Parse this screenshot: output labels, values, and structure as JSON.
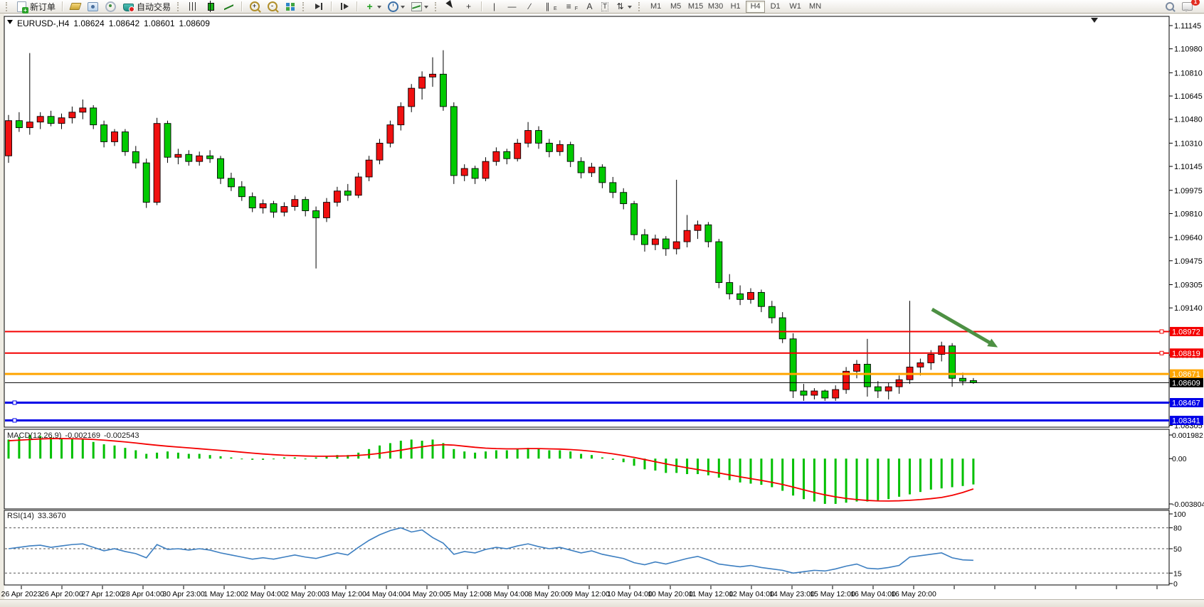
{
  "toolbar": {
    "new_order_label": "新订单",
    "auto_trading_label": "自动交易",
    "timeframes": [
      "M1",
      "M5",
      "M15",
      "M30",
      "H1",
      "H4",
      "D1",
      "W1",
      "MN"
    ],
    "active_timeframe": "H4",
    "tool_labels": {
      "text": "A",
      "label": "T",
      "channel": "E",
      "fibonacci": "F"
    },
    "notification_badge": "1"
  },
  "chart": {
    "title": "EURUSD-,H4",
    "open": "1.08624",
    "high": "1.08642",
    "low": "1.08601",
    "close": "1.08609"
  },
  "price_axis": {
    "ticks": [
      "1.11145",
      "1.10980",
      "1.10810",
      "1.10645",
      "1.10480",
      "1.10310",
      "1.10145",
      "1.09975",
      "1.09810",
      "1.09640",
      "1.09475",
      "1.09305",
      "1.09140",
      "1.08975",
      "1.08805",
      "1.08640",
      "1.08470",
      "1.08305"
    ]
  },
  "time_axis": {
    "labels": [
      "26 Apr 2023",
      "26 Apr 20:00",
      "27 Apr 12:00",
      "28 Apr 04:00",
      "30 Apr 23:00",
      "1 May 12:00",
      "2 May 04:00",
      "2 May 20:00",
      "3 May 12:00",
      "4 May 04:00",
      "4 May 20:00",
      "5 May 12:00",
      "8 May 04:00",
      "8 May 20:00",
      "9 May 12:00",
      "10 May 04:00",
      "10 May 20:00",
      "11 May 12:00",
      "12 May 04:00",
      "14 May 23:00",
      "15 May 12:00",
      "16 May 04:00",
      "16 May 20:00"
    ]
  },
  "hlines": [
    {
      "price": "1.08972",
      "color": "#f40000",
      "thickness": 2,
      "handle": "right"
    },
    {
      "price": "1.08819",
      "color": "#f40000",
      "thickness": 2,
      "handle": "right"
    },
    {
      "price": "1.08671",
      "color": "#ffa500",
      "thickness": 3,
      "handle": "none"
    },
    {
      "price": "1.08609",
      "color": "#000000",
      "thickness": 1,
      "handle": "none"
    },
    {
      "price": "1.08467",
      "color": "#0000e8",
      "thickness": 3,
      "handle": "left"
    },
    {
      "price": "1.08341",
      "color": "#0000e8",
      "thickness": 3,
      "handle": "left"
    }
  ],
  "indicators": {
    "macd": {
      "name": "MACD(12,26,9)",
      "main_value": "-0.002169",
      "signal_value": "-0.002543",
      "axis_ticks": [
        "0.001982",
        "0.00",
        "-0.003804"
      ]
    },
    "rsi": {
      "name": "RSI(14)",
      "value": "33.3670",
      "axis_ticks": [
        "100",
        "80",
        "50",
        "15",
        "0"
      ],
      "level_lines": [
        80,
        50,
        15
      ]
    }
  },
  "chart_data": {
    "type": "candlestick",
    "symbol": "EURUSD",
    "period": "H4",
    "bull_color": "#f01010",
    "bear_color": "#00ca00",
    "visible_price_range": [
      1.0828,
      1.1121
    ],
    "candles": [
      [
        1.1022,
        1.1051,
        1.1017,
        1.1047
      ],
      [
        1.1047,
        1.1053,
        1.1039,
        1.1042
      ],
      [
        1.1042,
        1.1095,
        1.1037,
        1.1046
      ],
      [
        1.1046,
        1.1053,
        1.1041,
        1.105
      ],
      [
        1.105,
        1.1054,
        1.1043,
        1.1045
      ],
      [
        1.1045,
        1.1052,
        1.1041,
        1.1049
      ],
      [
        1.1049,
        1.1057,
        1.1045,
        1.1053
      ],
      [
        1.1053,
        1.1062,
        1.1048,
        1.1056
      ],
      [
        1.1056,
        1.1058,
        1.1041,
        1.1044
      ],
      [
        1.1044,
        1.1047,
        1.1028,
        1.1032
      ],
      [
        1.1032,
        1.1041,
        1.1029,
        1.1039
      ],
      [
        1.1039,
        1.1041,
        1.1022,
        1.1025
      ],
      [
        1.1025,
        1.1029,
        1.1013,
        1.1017
      ],
      [
        1.1017,
        1.102,
        1.0985,
        1.0989
      ],
      [
        1.0989,
        1.1049,
        1.0987,
        1.1045
      ],
      [
        1.1045,
        1.1047,
        1.1017,
        1.1021
      ],
      [
        1.1021,
        1.1027,
        1.1016,
        1.1023
      ],
      [
        1.1023,
        1.1026,
        1.1015,
        1.1018
      ],
      [
        1.1018,
        1.1025,
        1.1015,
        1.1022
      ],
      [
        1.1022,
        1.1026,
        1.1017,
        1.102
      ],
      [
        1.102,
        1.1022,
        1.1002,
        1.1006
      ],
      [
        1.1006,
        1.101,
        1.0997,
        1.1
      ],
      [
        1.1,
        1.1004,
        1.099,
        1.0993
      ],
      [
        1.0993,
        1.0996,
        1.0982,
        1.0985
      ],
      [
        1.0985,
        1.0991,
        1.0981,
        1.0988
      ],
      [
        1.0988,
        1.099,
        1.0978,
        1.0982
      ],
      [
        1.0982,
        1.0989,
        1.0979,
        1.0986
      ],
      [
        1.0986,
        1.0994,
        1.0983,
        1.0991
      ],
      [
        1.0991,
        1.0993,
        1.0979,
        1.0983
      ],
      [
        1.0983,
        1.0986,
        1.0942,
        1.0978
      ],
      [
        1.0978,
        1.0992,
        1.0975,
        1.0989
      ],
      [
        1.0989,
        1.1,
        1.0986,
        1.0997
      ],
      [
        1.0997,
        1.1002,
        1.099,
        1.0994
      ],
      [
        1.0994,
        1.101,
        1.0992,
        1.1007
      ],
      [
        1.1007,
        1.1022,
        1.1004,
        1.1019
      ],
      [
        1.1019,
        1.1034,
        1.1016,
        1.1031
      ],
      [
        1.1031,
        1.1047,
        1.1028,
        1.1044
      ],
      [
        1.1044,
        1.106,
        1.104,
        1.1057
      ],
      [
        1.1057,
        1.1073,
        1.1053,
        1.107
      ],
      [
        1.107,
        1.1082,
        1.1062,
        1.1078
      ],
      [
        1.1078,
        1.1092,
        1.1071,
        1.108
      ],
      [
        1.108,
        1.1097,
        1.1054,
        1.1057
      ],
      [
        1.1057,
        1.106,
        1.1002,
        1.1008
      ],
      [
        1.1008,
        1.1016,
        1.1004,
        1.1013
      ],
      [
        1.1013,
        1.1015,
        1.1002,
        1.1006
      ],
      [
        1.1006,
        1.1021,
        1.1004,
        1.1018
      ],
      [
        1.1018,
        1.1028,
        1.1015,
        1.1025
      ],
      [
        1.1025,
        1.1027,
        1.1016,
        1.102
      ],
      [
        1.102,
        1.1034,
        1.1018,
        1.1031
      ],
      [
        1.1031,
        1.1046,
        1.1028,
        1.104
      ],
      [
        1.104,
        1.1043,
        1.1027,
        1.1031
      ],
      [
        1.1031,
        1.1034,
        1.1021,
        1.1025
      ],
      [
        1.1025,
        1.1033,
        1.1022,
        1.103
      ],
      [
        1.103,
        1.1032,
        1.1014,
        1.1018
      ],
      [
        1.1018,
        1.1021,
        1.1006,
        1.101
      ],
      [
        1.101,
        1.1017,
        1.1007,
        1.1014
      ],
      [
        1.1014,
        1.1016,
        1.0999,
        1.1003
      ],
      [
        1.1003,
        1.1007,
        1.0992,
        1.0996
      ],
      [
        1.0996,
        1.0999,
        1.0984,
        1.0988
      ],
      [
        1.0988,
        1.099,
        1.0962,
        1.0966
      ],
      [
        1.0966,
        1.097,
        1.0954,
        1.0959
      ],
      [
        1.0959,
        1.0966,
        1.0955,
        1.0963
      ],
      [
        1.0963,
        1.0965,
        1.0951,
        1.0956
      ],
      [
        1.0956,
        1.1005,
        1.0952,
        1.0961
      ],
      [
        1.0961,
        1.098,
        1.0957,
        1.0969
      ],
      [
        1.0969,
        1.0976,
        1.0963,
        1.0973
      ],
      [
        1.0973,
        1.0975,
        1.0957,
        1.0961
      ],
      [
        1.0961,
        1.0963,
        1.0928,
        1.0932
      ],
      [
        1.0932,
        1.0938,
        1.092,
        1.0924
      ],
      [
        1.0924,
        1.093,
        1.0916,
        1.092
      ],
      [
        1.092,
        1.0928,
        1.0917,
        1.0925
      ],
      [
        1.0925,
        1.0927,
        1.0911,
        1.0915
      ],
      [
        1.0915,
        1.0919,
        1.0903,
        1.0907
      ],
      [
        1.0907,
        1.0911,
        1.0889,
        1.0892
      ],
      [
        1.0892,
        1.0896,
        1.085,
        1.0855
      ],
      [
        1.0855,
        1.086,
        1.0848,
        1.0852
      ],
      [
        1.0852,
        1.0857,
        1.0849,
        1.0855
      ],
      [
        1.0855,
        1.0856,
        1.0848,
        1.085
      ],
      [
        1.085,
        1.0859,
        1.0848,
        1.0856
      ],
      [
        1.0856,
        1.0872,
        1.0853,
        1.0869
      ],
      [
        1.0869,
        1.0877,
        1.0864,
        1.0874
      ],
      [
        1.0874,
        1.0892,
        1.0851,
        1.0858
      ],
      [
        1.0858,
        1.0862,
        1.085,
        1.0855
      ],
      [
        1.0855,
        1.0861,
        1.0849,
        1.0858
      ],
      [
        1.0858,
        1.0866,
        1.0853,
        1.0863
      ],
      [
        1.0863,
        1.0919,
        1.086,
        1.0872
      ],
      [
        1.0872,
        1.0878,
        1.0866,
        1.0875
      ],
      [
        1.0875,
        1.0884,
        1.087,
        1.0881
      ],
      [
        1.0881,
        1.089,
        1.0876,
        1.0887
      ],
      [
        1.0887,
        1.0889,
        1.0858,
        1.0864
      ],
      [
        1.0864,
        1.0868,
        1.0859,
        1.0862
      ],
      [
        1.08624,
        1.08642,
        1.08601,
        1.08609
      ]
    ],
    "macd": {
      "histogram_color": "#00c000",
      "signal_color": "#f40000",
      "range": [
        -0.003804,
        0.001982
      ],
      "histogram": [
        0.0016,
        0.0018,
        0.00198,
        0.0019,
        0.0018,
        0.0017,
        0.0017,
        0.0016,
        0.0014,
        0.0012,
        0.0011,
        0.0009,
        0.0007,
        0.0004,
        0.0005,
        0.0006,
        0.0005,
        0.0004,
        0.0004,
        0.0003,
        0.0002,
        0.0001,
        0,
        -0.0001,
        -0.0001,
        0,
        0.0001,
        0.0001,
        0,
        0.0001,
        0.0002,
        0.0003,
        0.0003,
        0.0005,
        0.0008,
        0.0011,
        0.0013,
        0.0015,
        0.0016,
        0.0015,
        0.0016,
        0.0013,
        0.0008,
        0.0006,
        0.0005,
        0.0006,
        0.0007,
        0.0007,
        0.0008,
        0.0009,
        0.0008,
        0.0007,
        0.0007,
        0.0006,
        0.0004,
        0.0003,
        0.0001,
        -0.0001,
        -0.0003,
        -0.0006,
        -0.0009,
        -0.001,
        -0.0012,
        -0.0012,
        -0.0013,
        -0.0013,
        -0.0014,
        -0.0016,
        -0.0018,
        -0.002,
        -0.0021,
        -0.0022,
        -0.0024,
        -0.0027,
        -0.0031,
        -0.0034,
        -0.0036,
        -0.0038,
        -0.0038,
        -0.0037,
        -0.0036,
        -0.0036,
        -0.0035,
        -0.0034,
        -0.0032,
        -0.003,
        -0.0028,
        -0.0026,
        -0.0025,
        -0.0024,
        -0.0023,
        -0.002169
      ],
      "signal_line": [
        0.0015,
        0.00155,
        0.0016,
        0.00165,
        0.00168,
        0.00168,
        0.00167,
        0.00165,
        0.00161,
        0.00155,
        0.00148,
        0.0014,
        0.00131,
        0.00121,
        0.00112,
        0.00104,
        0.00097,
        0.0009,
        0.00083,
        0.00076,
        0.00069,
        0.00062,
        0.00054,
        0.00046,
        0.00039,
        0.00033,
        0.00028,
        0.00025,
        0.00022,
        0.0002,
        0.0002,
        0.00021,
        0.00023,
        0.00027,
        0.00034,
        0.00044,
        0.00057,
        0.00071,
        0.00086,
        0.00099,
        0.00111,
        0.00117,
        0.00113,
        0.00104,
        0.00095,
        0.00088,
        0.00084,
        0.00082,
        0.00082,
        0.00084,
        0.00084,
        0.00082,
        0.0008,
        0.00076,
        0.0007,
        0.00062,
        0.00052,
        0.0004,
        0.00026,
        0.0001,
        -8e-05,
        -0.00026,
        -0.00044,
        -0.00061,
        -0.00077,
        -0.00092,
        -0.00106,
        -0.00121,
        -0.00137,
        -0.00153,
        -0.00168,
        -0.00183,
        -0.00199,
        -0.00217,
        -0.00239,
        -0.00262,
        -0.00284,
        -0.00304,
        -0.00321,
        -0.00334,
        -0.00344,
        -0.00351,
        -0.00355,
        -0.00356,
        -0.00354,
        -0.0035,
        -0.00344,
        -0.00336,
        -0.00326,
        -0.00308,
        -0.00284,
        -0.002543
      ]
    },
    "rsi": {
      "color": "#3d7fc1",
      "range": [
        0,
        100
      ],
      "current": 33.367,
      "values": [
        50,
        52,
        54,
        55,
        52,
        54,
        56,
        57,
        52,
        47,
        50,
        46,
        43,
        37,
        56,
        49,
        50,
        48,
        50,
        48,
        44,
        41,
        38,
        35,
        37,
        35,
        38,
        41,
        38,
        36,
        40,
        44,
        41,
        52,
        62,
        70,
        76,
        80,
        74,
        77,
        66,
        58,
        42,
        46,
        44,
        49,
        52,
        50,
        54,
        57,
        53,
        50,
        52,
        48,
        44,
        47,
        42,
        39,
        36,
        30,
        27,
        31,
        28,
        32,
        36,
        39,
        34,
        28,
        26,
        24,
        26,
        23,
        21,
        19,
        15,
        17,
        19,
        18,
        21,
        25,
        28,
        22,
        21,
        23,
        26,
        38,
        40,
        42,
        44,
        37,
        34,
        33.4
      ]
    },
    "annotations": [
      {
        "type": "arrow",
        "color": "#4d9043",
        "from": {
          "bar": 87.1,
          "price": 1.0913
        },
        "to": {
          "bar": 93.3,
          "price": 1.0886
        }
      }
    ]
  }
}
